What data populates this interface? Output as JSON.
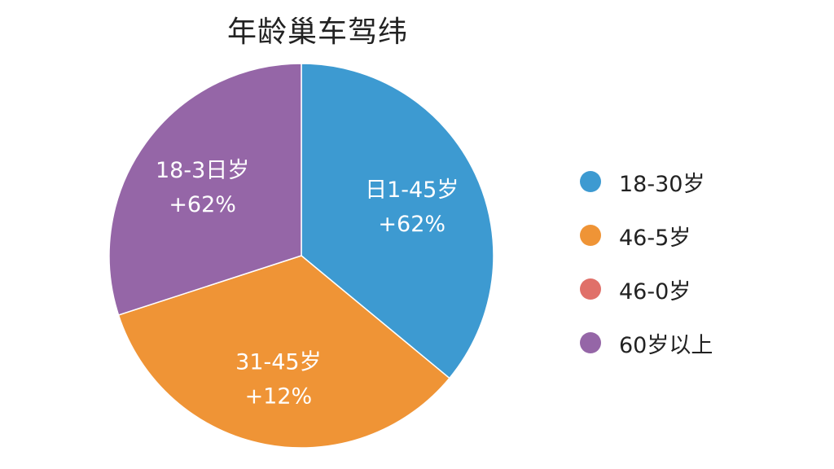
{
  "chart_data": {
    "type": "pie",
    "title": "年龄巢车驾纬",
    "slices": [
      {
        "legend": "18-30岁",
        "label_line1": "日1-45岁",
        "label_line2": "+62%",
        "value": 36,
        "color": "#3d9ad1"
      },
      {
        "legend": "46-5岁",
        "label_line1": "31-45岁",
        "label_line2": "+12%",
        "value": 34,
        "color": "#ef9436"
      },
      {
        "legend": "46-0岁",
        "label_line1": "",
        "label_line2": "",
        "value": 0,
        "color": "#e07069"
      },
      {
        "legend": "60岁以上",
        "label_line1": "18-3日岁",
        "label_line2": "+62%",
        "value": 30,
        "color": "#9566a7"
      }
    ],
    "start_angle_deg": 0,
    "direction": "clockwise",
    "legend_position": "right"
  }
}
